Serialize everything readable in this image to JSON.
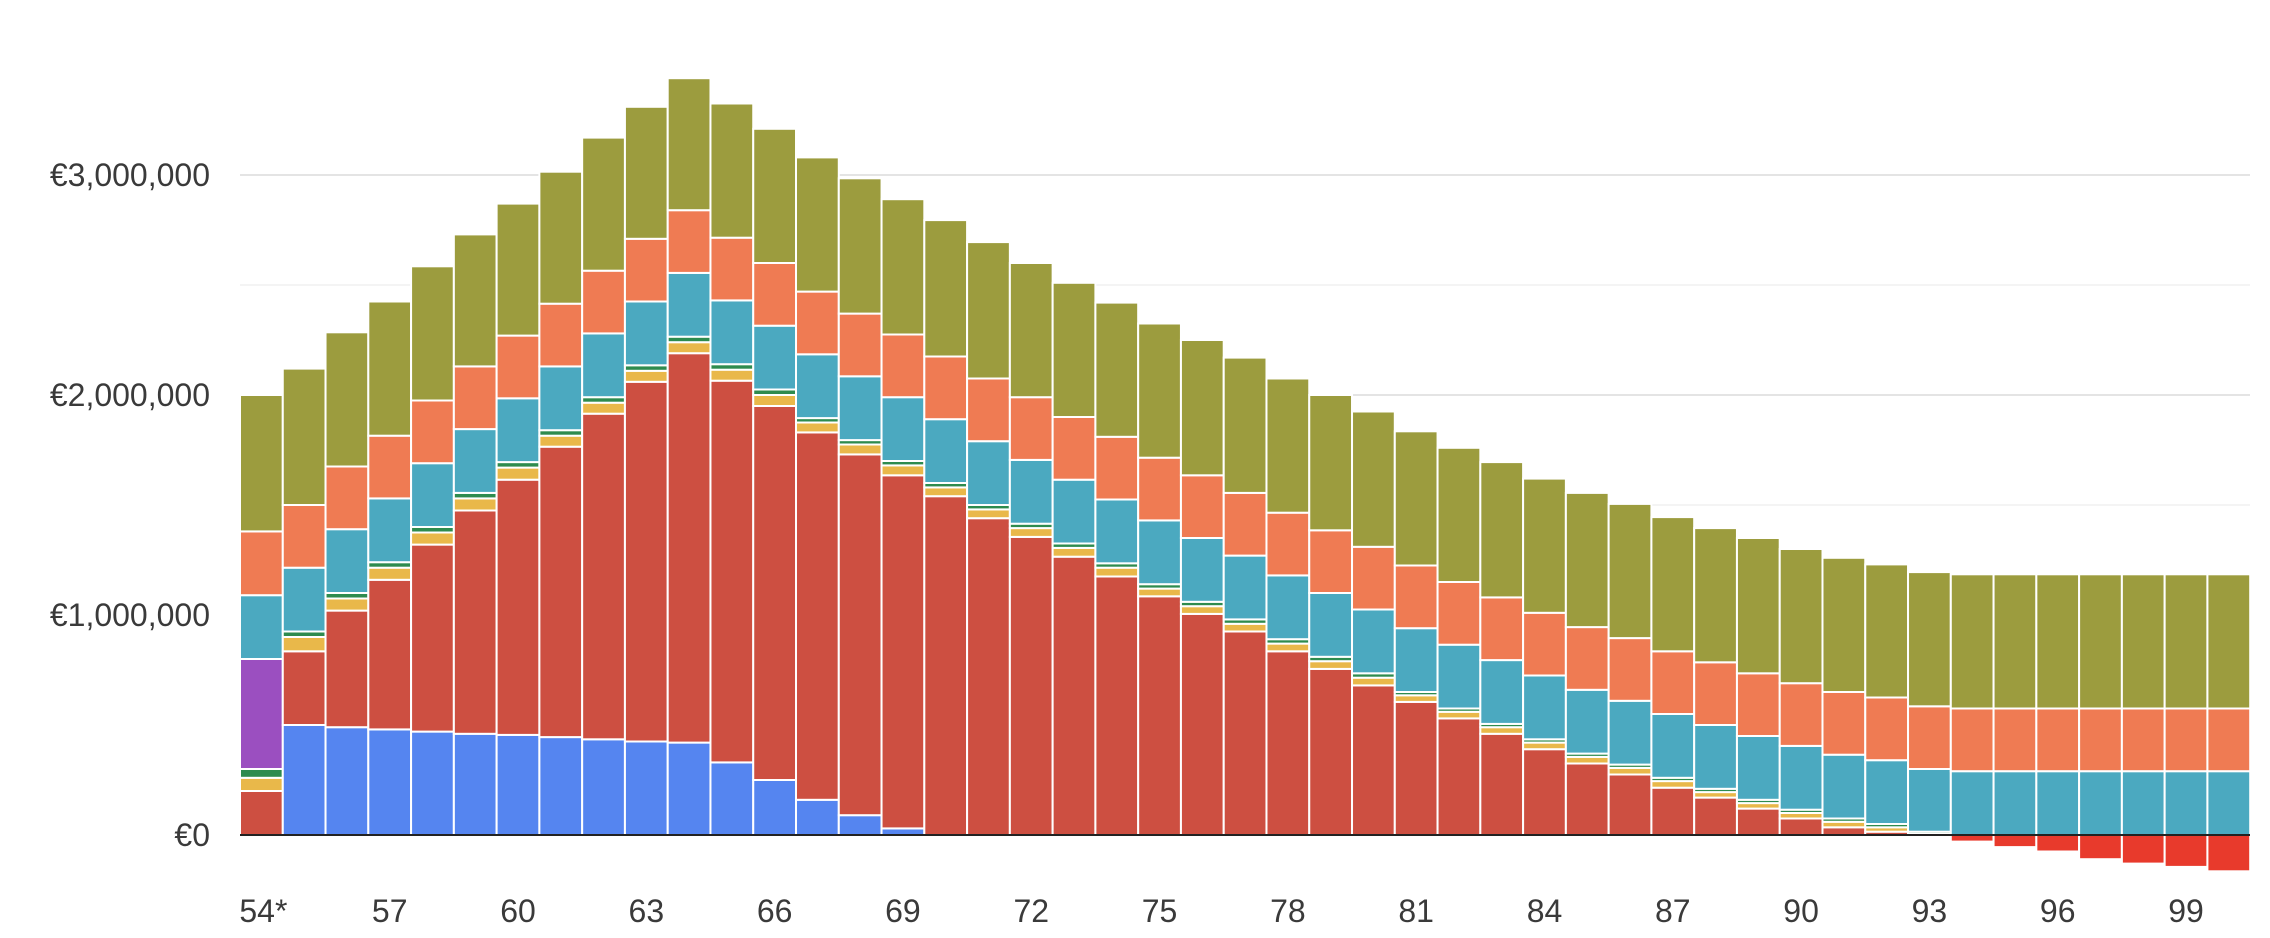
{
  "chart_data": {
    "type": "bar",
    "stacked": true,
    "title": "",
    "xlabel": "",
    "ylabel": "",
    "ylim": [
      -200000,
      3500000
    ],
    "y_ticks": [
      0,
      1000000,
      2000000,
      3000000
    ],
    "y_tick_labels": [
      "€0",
      "€1,000,000",
      "€2,000,000",
      "€3,000,000"
    ],
    "minor_gridlines": [
      500000,
      1500000,
      2500000
    ],
    "x_tick_labels": [
      {
        "age": 54,
        "label": "54*"
      },
      {
        "age": 57,
        "label": "57"
      },
      {
        "age": 60,
        "label": "60"
      },
      {
        "age": 63,
        "label": "63"
      },
      {
        "age": 66,
        "label": "66"
      },
      {
        "age": 69,
        "label": "69"
      },
      {
        "age": 72,
        "label": "72"
      },
      {
        "age": 75,
        "label": "75"
      },
      {
        "age": 78,
        "label": "78"
      },
      {
        "age": 81,
        "label": "81"
      },
      {
        "age": 84,
        "label": "84"
      },
      {
        "age": 87,
        "label": "87"
      },
      {
        "age": 90,
        "label": "90"
      },
      {
        "age": 93,
        "label": "93"
      },
      {
        "age": 96,
        "label": "96"
      },
      {
        "age": 99,
        "label": "99"
      }
    ],
    "categories": [
      54,
      55,
      56,
      57,
      58,
      59,
      60,
      61,
      62,
      63,
      64,
      65,
      66,
      67,
      68,
      69,
      70,
      71,
      72,
      73,
      74,
      75,
      76,
      77,
      78,
      79,
      80,
      81,
      82,
      83,
      84,
      85,
      86,
      87,
      88,
      89,
      90,
      91,
      92,
      93,
      94,
      95,
      96,
      97,
      98,
      99,
      100
    ],
    "series": [
      {
        "name": "Blue",
        "color": "#5585f0",
        "values": [
          0,
          500000,
          490000,
          480000,
          470000,
          460000,
          455000,
          445000,
          435000,
          425000,
          420000,
          330000,
          250000,
          160000,
          90000,
          30000,
          0,
          0,
          0,
          0,
          0,
          0,
          0,
          0,
          0,
          0,
          0,
          0,
          0,
          0,
          0,
          0,
          0,
          0,
          0,
          0,
          0,
          0,
          0,
          0,
          0,
          0,
          0,
          0,
          0,
          0,
          0
        ]
      },
      {
        "name": "Red",
        "color": "#cd4f41",
        "values": [
          200000,
          335000,
          530000,
          680000,
          850000,
          1015000,
          1160000,
          1320000,
          1480000,
          1635000,
          1770000,
          1735000,
          1700000,
          1670000,
          1640000,
          1605000,
          1540000,
          1440000,
          1355000,
          1265000,
          1175000,
          1085000,
          1005000,
          925000,
          835000,
          755000,
          680000,
          605000,
          530000,
          460000,
          390000,
          325000,
          275000,
          215000,
          170000,
          120000,
          75000,
          35000,
          15000,
          5000,
          0,
          0,
          0,
          0,
          0,
          0,
          0
        ]
      },
      {
        "name": "Yellow",
        "color": "#e9b84a",
        "values": [
          60000,
          65000,
          55000,
          55000,
          55000,
          55000,
          55000,
          50000,
          50000,
          50000,
          50000,
          50000,
          50000,
          45000,
          45000,
          45000,
          40000,
          40000,
          40000,
          40000,
          40000,
          35000,
          35000,
          35000,
          35000,
          35000,
          35000,
          30000,
          30000,
          30000,
          30000,
          30000,
          30000,
          30000,
          25000,
          25000,
          25000,
          25000,
          20000,
          0,
          0,
          0,
          0,
          0,
          0,
          0,
          0
        ]
      },
      {
        "name": "Green",
        "color": "#2e8b4e",
        "values": [
          40000,
          25000,
          25000,
          25000,
          25000,
          25000,
          25000,
          25000,
          25000,
          25000,
          25000,
          25000,
          25000,
          20000,
          20000,
          20000,
          20000,
          20000,
          20000,
          20000,
          20000,
          20000,
          20000,
          20000,
          20000,
          20000,
          20000,
          15000,
          15000,
          15000,
          15000,
          15000,
          15000,
          15000,
          15000,
          15000,
          15000,
          15000,
          15000,
          10000,
          0,
          0,
          0,
          0,
          0,
          0,
          0
        ]
      },
      {
        "name": "Purple",
        "color": "#9b4fc0",
        "values": [
          500000,
          0,
          0,
          0,
          0,
          0,
          0,
          0,
          0,
          0,
          0,
          0,
          0,
          0,
          0,
          0,
          0,
          0,
          0,
          0,
          0,
          0,
          0,
          0,
          0,
          0,
          0,
          0,
          0,
          0,
          0,
          0,
          0,
          0,
          0,
          0,
          0,
          0,
          0,
          0,
          0,
          0,
          0,
          0,
          0,
          0,
          0
        ]
      },
      {
        "name": "Teal",
        "color": "#4ba9c0",
        "values": [
          290000,
          290000,
          290000,
          290000,
          290000,
          290000,
          290000,
          290000,
          290000,
          290000,
          290000,
          290000,
          290000,
          290000,
          290000,
          290000,
          290000,
          290000,
          290000,
          290000,
          290000,
          290000,
          290000,
          290000,
          290000,
          290000,
          290000,
          290000,
          290000,
          290000,
          290000,
          290000,
          290000,
          290000,
          290000,
          290000,
          290000,
          290000,
          290000,
          285000,
          290000,
          290000,
          290000,
          290000,
          290000,
          290000,
          290000
        ]
      },
      {
        "name": "Orange",
        "color": "#ef7b53",
        "values": [
          290000,
          285000,
          285000,
          285000,
          285000,
          285000,
          285000,
          285000,
          285000,
          285000,
          285000,
          285000,
          285000,
          285000,
          285000,
          285000,
          285000,
          285000,
          285000,
          285000,
          285000,
          285000,
          285000,
          285000,
          285000,
          285000,
          285000,
          285000,
          285000,
          285000,
          285000,
          285000,
          285000,
          285000,
          285000,
          285000,
          285000,
          285000,
          285000,
          285000,
          285000,
          285000,
          285000,
          285000,
          285000,
          285000,
          285000
        ]
      },
      {
        "name": "Olive",
        "color": "#9c9c3e",
        "values": [
          620000,
          620000,
          610000,
          610000,
          610000,
          600000,
          600000,
          600000,
          605000,
          600000,
          600000,
          610000,
          610000,
          610000,
          615000,
          615000,
          620000,
          620000,
          610000,
          610000,
          610000,
          610000,
          615000,
          615000,
          610000,
          615000,
          615000,
          610000,
          610000,
          615000,
          610000,
          610000,
          610000,
          610000,
          610000,
          615000,
          610000,
          610000,
          605000,
          610000,
          610000,
          610000,
          610000,
          610000,
          610000,
          610000,
          610000
        ]
      },
      {
        "name": "Bright Red",
        "color": "#e83a2c",
        "values": [
          0,
          0,
          0,
          0,
          0,
          0,
          0,
          0,
          0,
          0,
          0,
          0,
          0,
          0,
          0,
          0,
          0,
          0,
          0,
          0,
          0,
          0,
          0,
          0,
          0,
          0,
          0,
          0,
          0,
          0,
          0,
          0,
          0,
          0,
          0,
          0,
          0,
          0,
          0,
          0,
          -30000,
          -55000,
          -75000,
          -110000,
          -130000,
          -145000,
          -165000
        ]
      }
    ]
  }
}
